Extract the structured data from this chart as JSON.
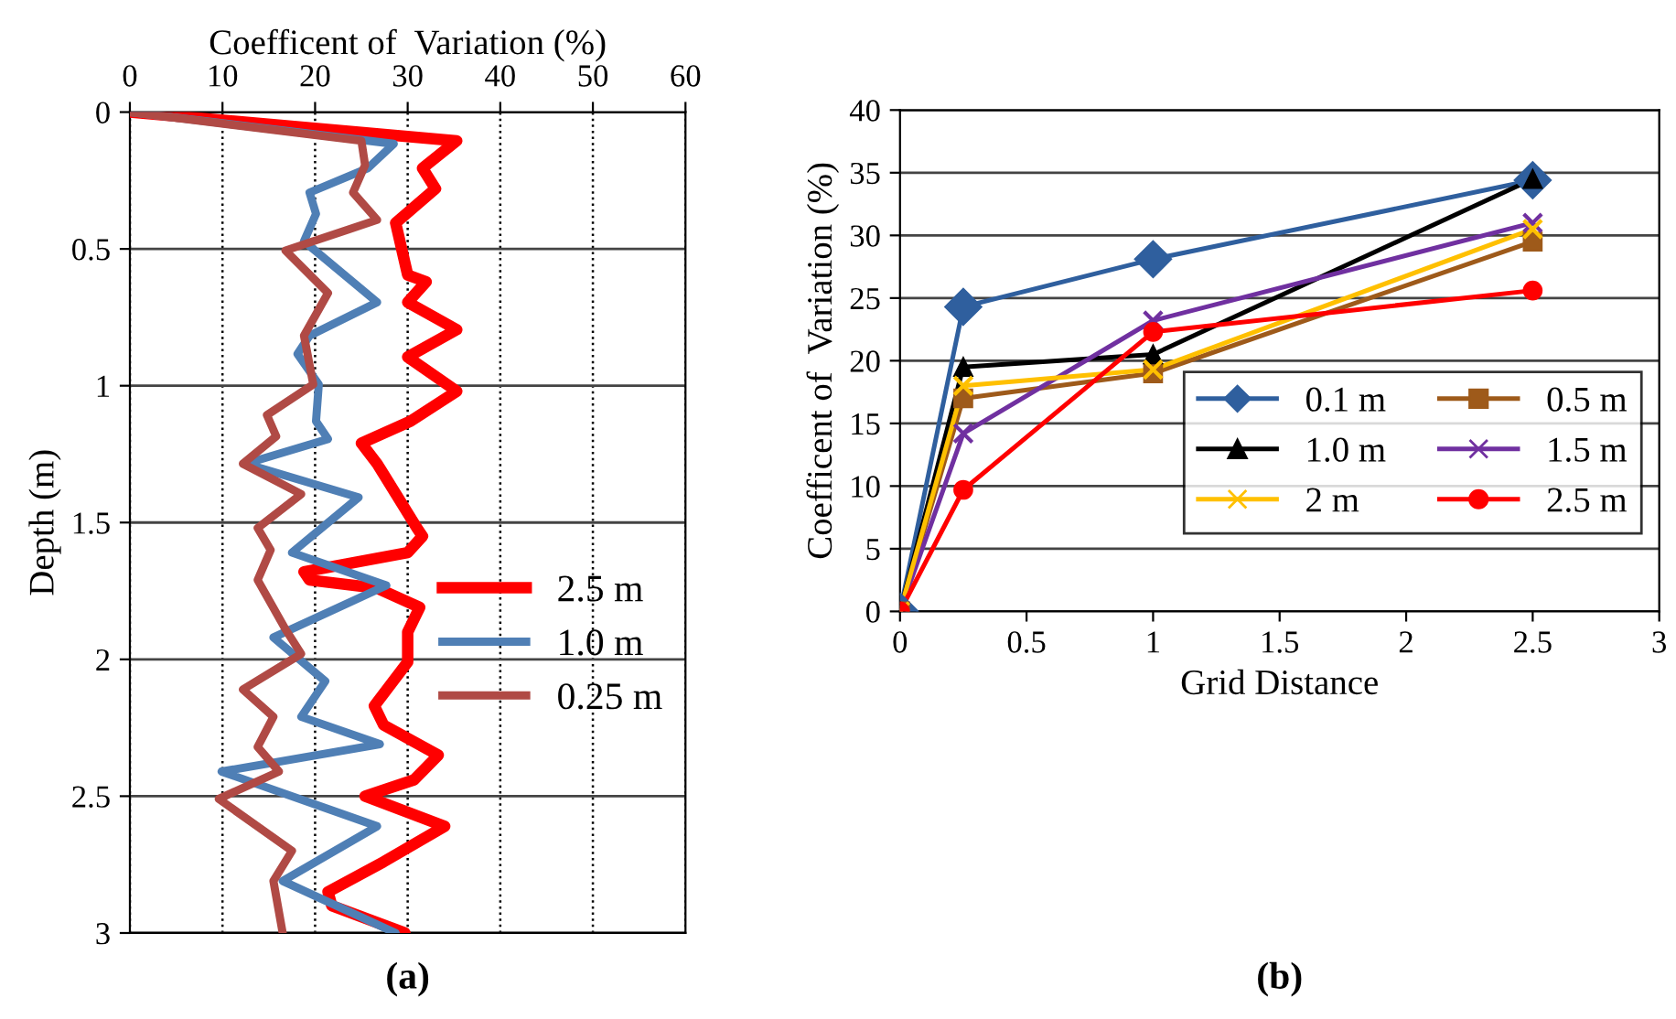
{
  "chart_data": [
    {
      "type": "line",
      "title": "(a)",
      "xlabel": "Coefficent of  Variation (%)",
      "ylabel": "Depth (m)",
      "xlim": [
        0,
        60
      ],
      "xticks": [
        0,
        10,
        20,
        30,
        40,
        50,
        60
      ],
      "ylim": [
        3,
        0
      ],
      "yticks": [
        0,
        0.5,
        1,
        1.5,
        2,
        2.5,
        3
      ],
      "grid": true,
      "legend": "right",
      "marker": "none",
      "series": [
        {
          "name": "2.5 m",
          "color": "#ff0000",
          "x": [
            0,
            35.3,
            31.6,
            33,
            28.7,
            30,
            32,
            30,
            35.3,
            30,
            35.3,
            30.3,
            25,
            26.7,
            31,
            31.6,
            30,
            18.8,
            19.4,
            26.7,
            31.3,
            30,
            30,
            26.4,
            27.4,
            33.3,
            30.7,
            25.4,
            34,
            27.4,
            21.4,
            21.8,
            29.7
          ],
          "values": [
            0,
            0.105,
            0.205,
            0.28,
            0.405,
            0.595,
            0.62,
            0.695,
            0.795,
            0.895,
            1.02,
            1.13,
            1.21,
            1.285,
            1.52,
            1.55,
            1.61,
            1.68,
            1.71,
            1.74,
            1.81,
            1.9,
            2.01,
            2.17,
            2.24,
            2.35,
            2.44,
            2.5,
            2.61,
            2.74,
            2.85,
            2.9,
            3.0
          ]
        },
        {
          "name": "1.0 m",
          "color": "#4f7fb5",
          "x": [
            0,
            28.5,
            25.7,
            19.4,
            20.1,
            18.8,
            26.7,
            19.4,
            18.1,
            20.4,
            20.1,
            21.4,
            12.5,
            24.7,
            17.5,
            27.7,
            15.5,
            21.1,
            18.5,
            27,
            9.9,
            26.7,
            16.5,
            28.7
          ],
          "values": [
            0,
            0.116,
            0.205,
            0.294,
            0.372,
            0.472,
            0.695,
            0.817,
            0.884,
            0.995,
            1.13,
            1.195,
            1.285,
            1.408,
            1.61,
            1.73,
            1.92,
            2.08,
            2.21,
            2.31,
            2.41,
            2.61,
            2.81,
            3.0
          ]
        },
        {
          "name": "0.25 m",
          "color": "#b04a45",
          "x": [
            0,
            25,
            25.4,
            24.1,
            26.7,
            16.8,
            21.4,
            18.8,
            19.8,
            14.8,
            15.8,
            12.2,
            18.5,
            13.8,
            15.2,
            13.8,
            16.8,
            18.5,
            12.2,
            15.5,
            13.8,
            16.1,
            9.6,
            17.5,
            15.5,
            16.5
          ],
          "values": [
            0,
            0.105,
            0.194,
            0.294,
            0.394,
            0.506,
            0.661,
            0.817,
            0.995,
            1.107,
            1.185,
            1.285,
            1.396,
            1.52,
            1.6,
            1.71,
            1.89,
            1.98,
            2.11,
            2.21,
            2.32,
            2.41,
            2.51,
            2.7,
            2.81,
            3.0
          ]
        }
      ]
    },
    {
      "type": "line",
      "title": "(b)",
      "xlabel": "Grid Distance",
      "ylabel": "Coefficent of  Variation (%)",
      "x": [
        0,
        0.25,
        1,
        2.5
      ],
      "xlim": [
        0,
        3
      ],
      "xticks": [
        0,
        0.5,
        1,
        1.5,
        2,
        2.5,
        3
      ],
      "ylim": [
        0,
        40
      ],
      "yticks": [
        0,
        5,
        10,
        15,
        20,
        25,
        30,
        35,
        40
      ],
      "grid": "y",
      "legend": "bottom right",
      "series": [
        {
          "name": "0.1 m",
          "color": "#2f5f9e",
          "marker": "diamond",
          "values": [
            0,
            24.3,
            28.1,
            34.4
          ]
        },
        {
          "name": "0.5 m",
          "color": "#9e5a1a",
          "marker": "square",
          "values": [
            0,
            17,
            19,
            29.5
          ]
        },
        {
          "name": "1.0 m",
          "color": "#000000",
          "marker": "triangle",
          "values": [
            0,
            19.5,
            20.5,
            34.5
          ]
        },
        {
          "name": "1.5 m",
          "color": "#7030a0",
          "marker": "cross",
          "values": [
            0,
            14.2,
            23.2,
            31
          ]
        },
        {
          "name": "2 m",
          "color": "#ffc000",
          "marker": "cross",
          "values": [
            0,
            18,
            19.3,
            30.5
          ]
        },
        {
          "name": "2.5 m",
          "color": "#ff0000",
          "marker": "circle",
          "values": [
            0,
            9.7,
            22.3,
            25.6
          ]
        }
      ]
    }
  ]
}
